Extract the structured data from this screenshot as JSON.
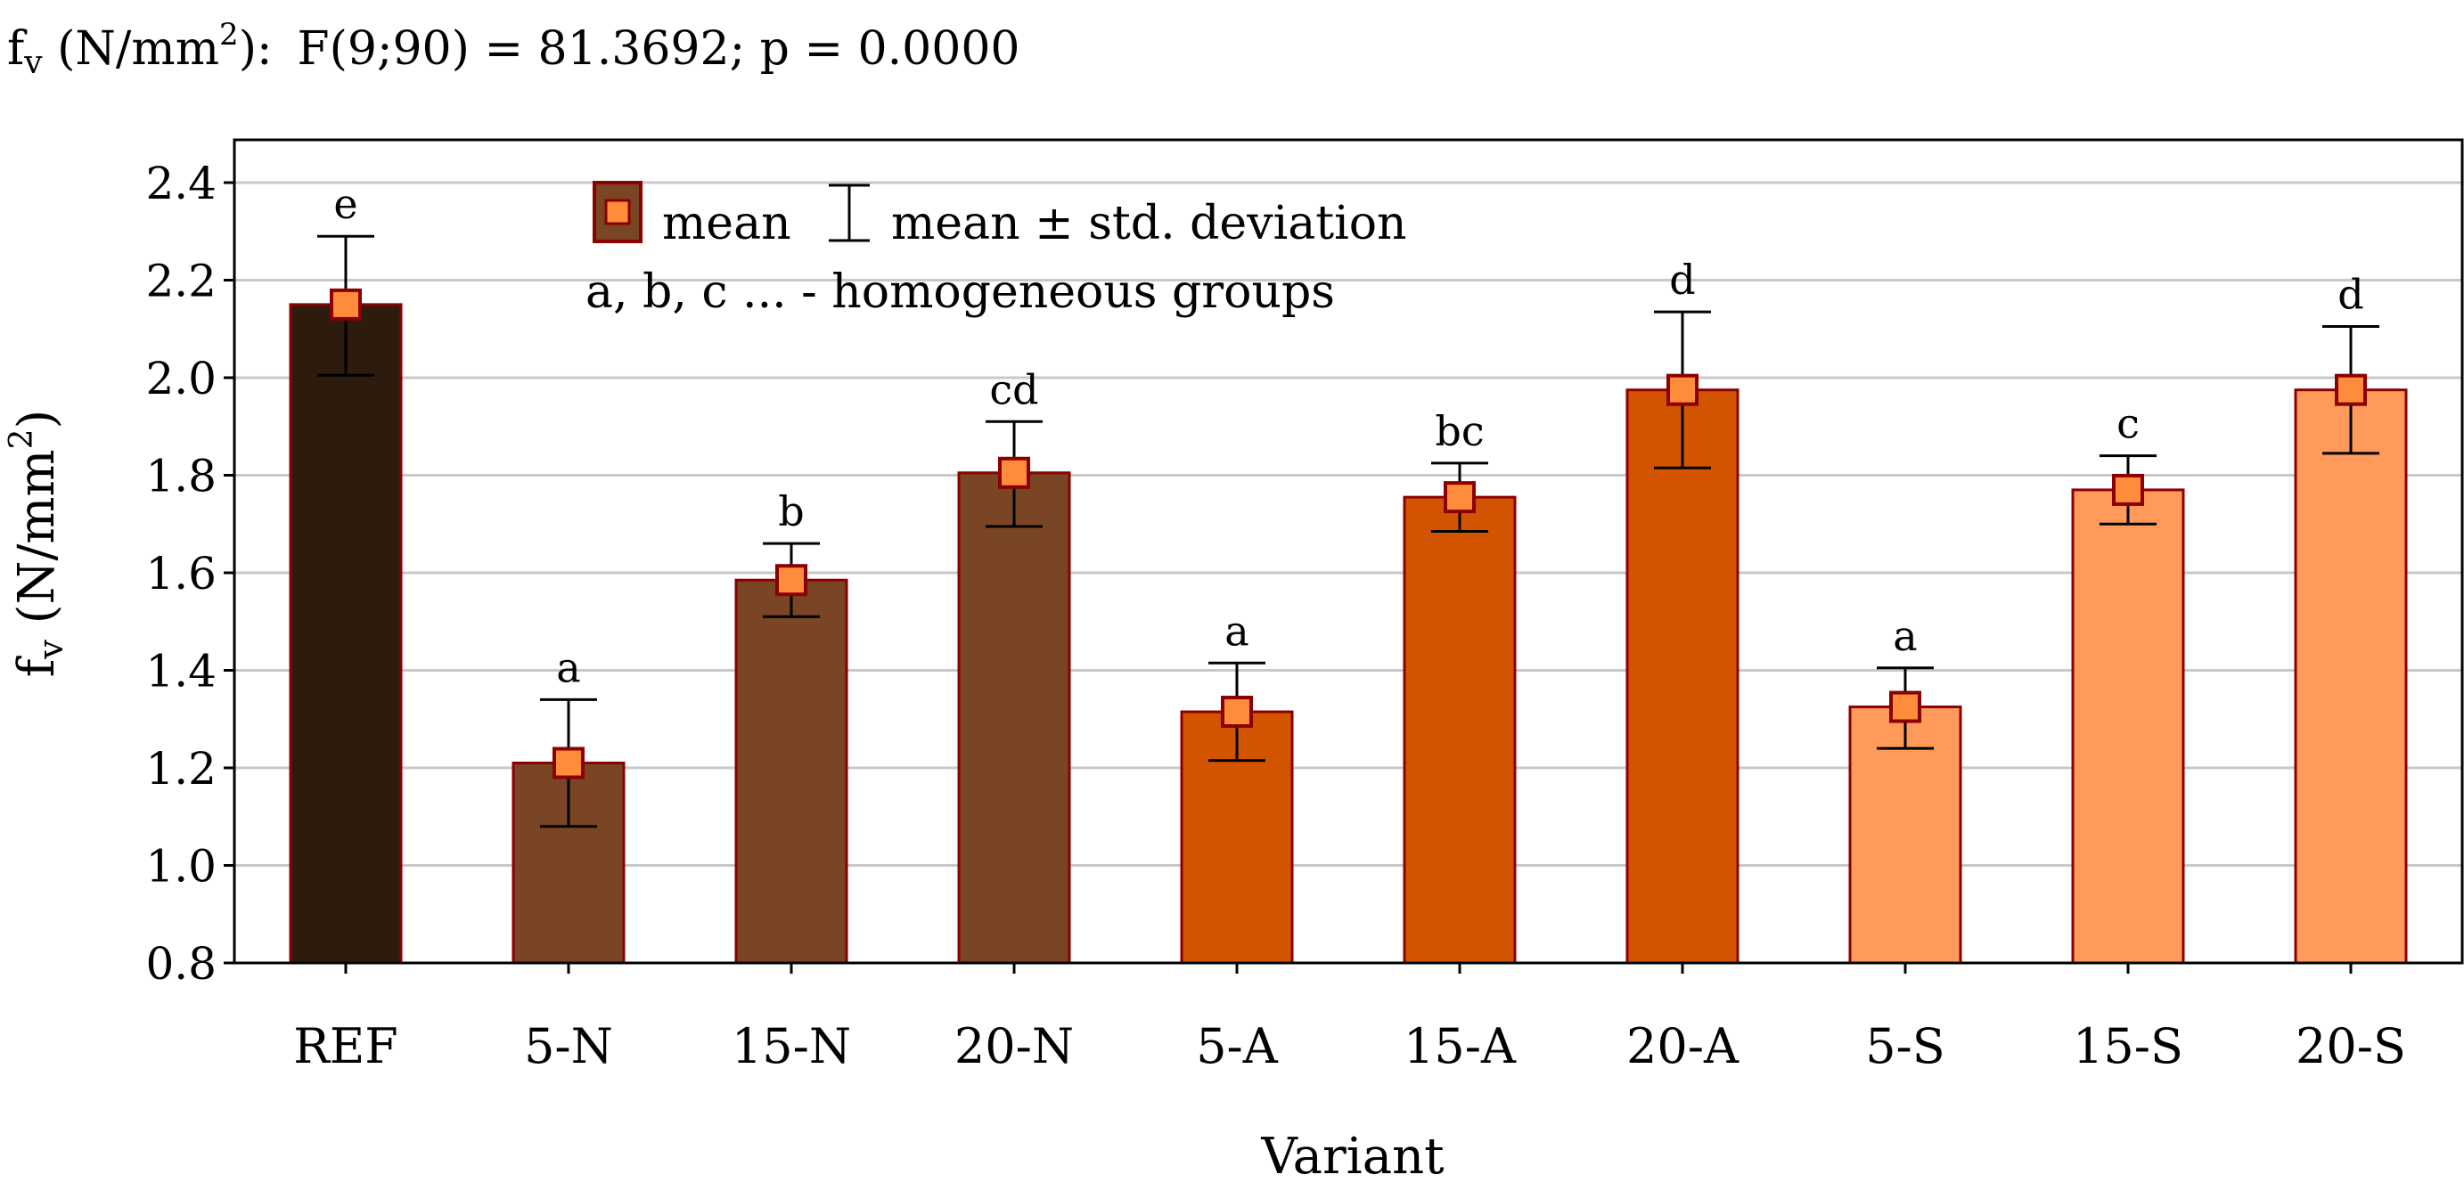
{
  "chart_data": {
    "type": "bar",
    "title": "fv (N/mm2):   F(9;90) = 81.3692; p = 0.0000",
    "title_parts": {
      "symbol": "f",
      "symbol_sub": "v",
      "unit_open": " (N/mm",
      "unit_sup": "2",
      "unit_close": "):",
      "stats": "F(9;90) = 81.3692; p = 0.0000"
    },
    "xlabel": "Variant",
    "ylabel_parts": {
      "symbol": "f",
      "symbol_sub": "v",
      "unit_open": " (N/mm",
      "unit_sup": "2",
      "unit_close": ")"
    },
    "ylim": [
      0.8,
      2.5
    ],
    "yticks": [
      "0.8",
      "1.0",
      "1.2",
      "1.4",
      "1.6",
      "1.8",
      "2.0",
      "2.2",
      "2.4"
    ],
    "grid": true,
    "categories": [
      "REF",
      "5-N",
      "15-N",
      "20-N",
      "5-A",
      "15-A",
      "20-A",
      "5-S",
      "15-S",
      "20-S"
    ],
    "values": [
      2.15,
      1.21,
      1.585,
      1.805,
      1.315,
      1.755,
      1.975,
      1.325,
      1.77,
      1.975
    ],
    "std_low": [
      2.005,
      1.08,
      1.51,
      1.695,
      1.215,
      1.685,
      1.815,
      1.24,
      1.7,
      1.845
    ],
    "std_high": [
      2.29,
      1.34,
      1.66,
      1.91,
      1.415,
      1.825,
      2.135,
      1.405,
      1.84,
      2.105
    ],
    "groups": [
      "e",
      "a",
      "b",
      "cd",
      "a",
      "bc",
      "d",
      "a",
      "c",
      "d"
    ],
    "bar_colors": [
      "#2d1b0e",
      "#7a4524",
      "#7a4524",
      "#7a4524",
      "#d35400",
      "#d35400",
      "#d35400",
      "#ff9a5a",
      "#ff9a5a",
      "#ff9a5a"
    ],
    "bar_border_color": "#8b0000",
    "marker_color": "#ff8c3a",
    "marker_border_color": "#8b0000",
    "legend": {
      "position": "top-center",
      "mean_label": "mean",
      "std_label": "mean ± std. deviation",
      "groups_note": "a, b, c ... -  homogeneous groups",
      "swatch_color": "#7a4524"
    }
  }
}
